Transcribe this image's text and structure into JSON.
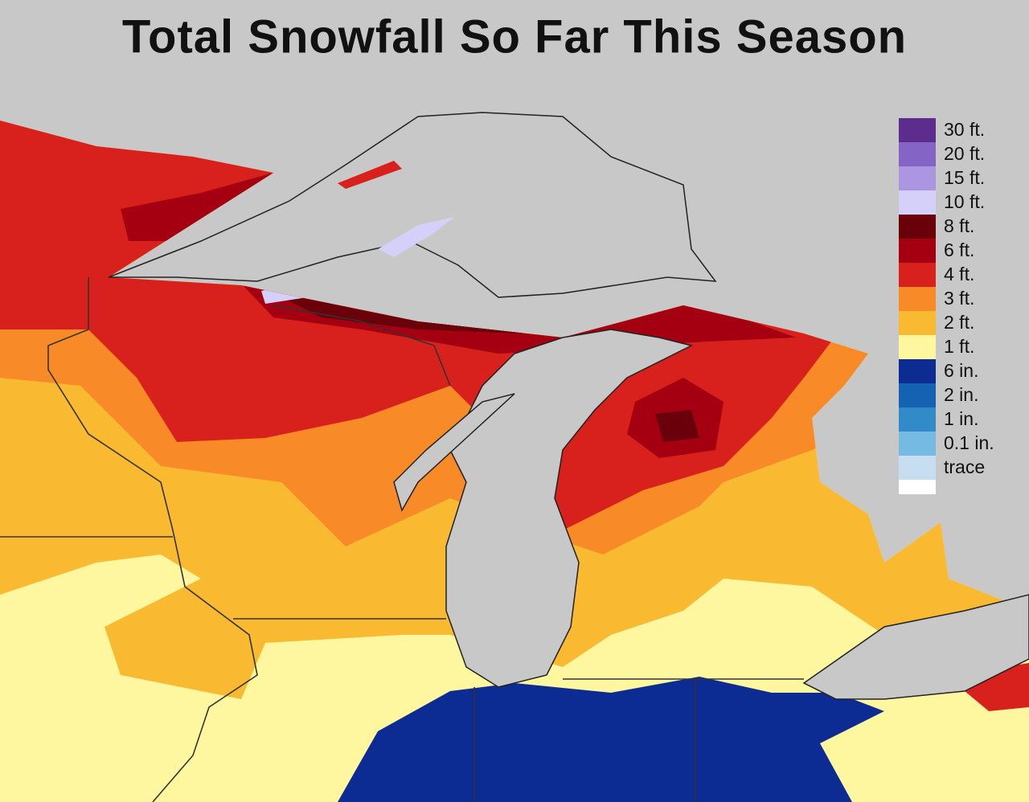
{
  "title": "Total Snowfall So Far This Season",
  "legend": {
    "items": [
      {
        "label": "30 ft.",
        "color": "#5c2d8c"
      },
      {
        "label": "20 ft.",
        "color": "#8464c4"
      },
      {
        "label": "15 ft.",
        "color": "#ac96e2"
      },
      {
        "label": "10 ft.",
        "color": "#d4d0fa"
      },
      {
        "label": "8 ft.",
        "color": "#6a000a"
      },
      {
        "label": "6 ft.",
        "color": "#a40012"
      },
      {
        "label": "4 ft.",
        "color": "#d8201c"
      },
      {
        "label": "3 ft.",
        "color": "#f88a28"
      },
      {
        "label": "2 ft.",
        "color": "#f9ba32"
      },
      {
        "label": "1 ft.",
        "color": "#fff7a0"
      },
      {
        "label": "6 in.",
        "color": "#0c2c94"
      },
      {
        "label": "2 in.",
        "color": "#1662b2"
      },
      {
        "label": "1 in.",
        "color": "#328ac8"
      },
      {
        "label": "0.1 in.",
        "color": "#74bae2"
      },
      {
        "label": "trace",
        "color": "#c6def0"
      }
    ]
  }
}
